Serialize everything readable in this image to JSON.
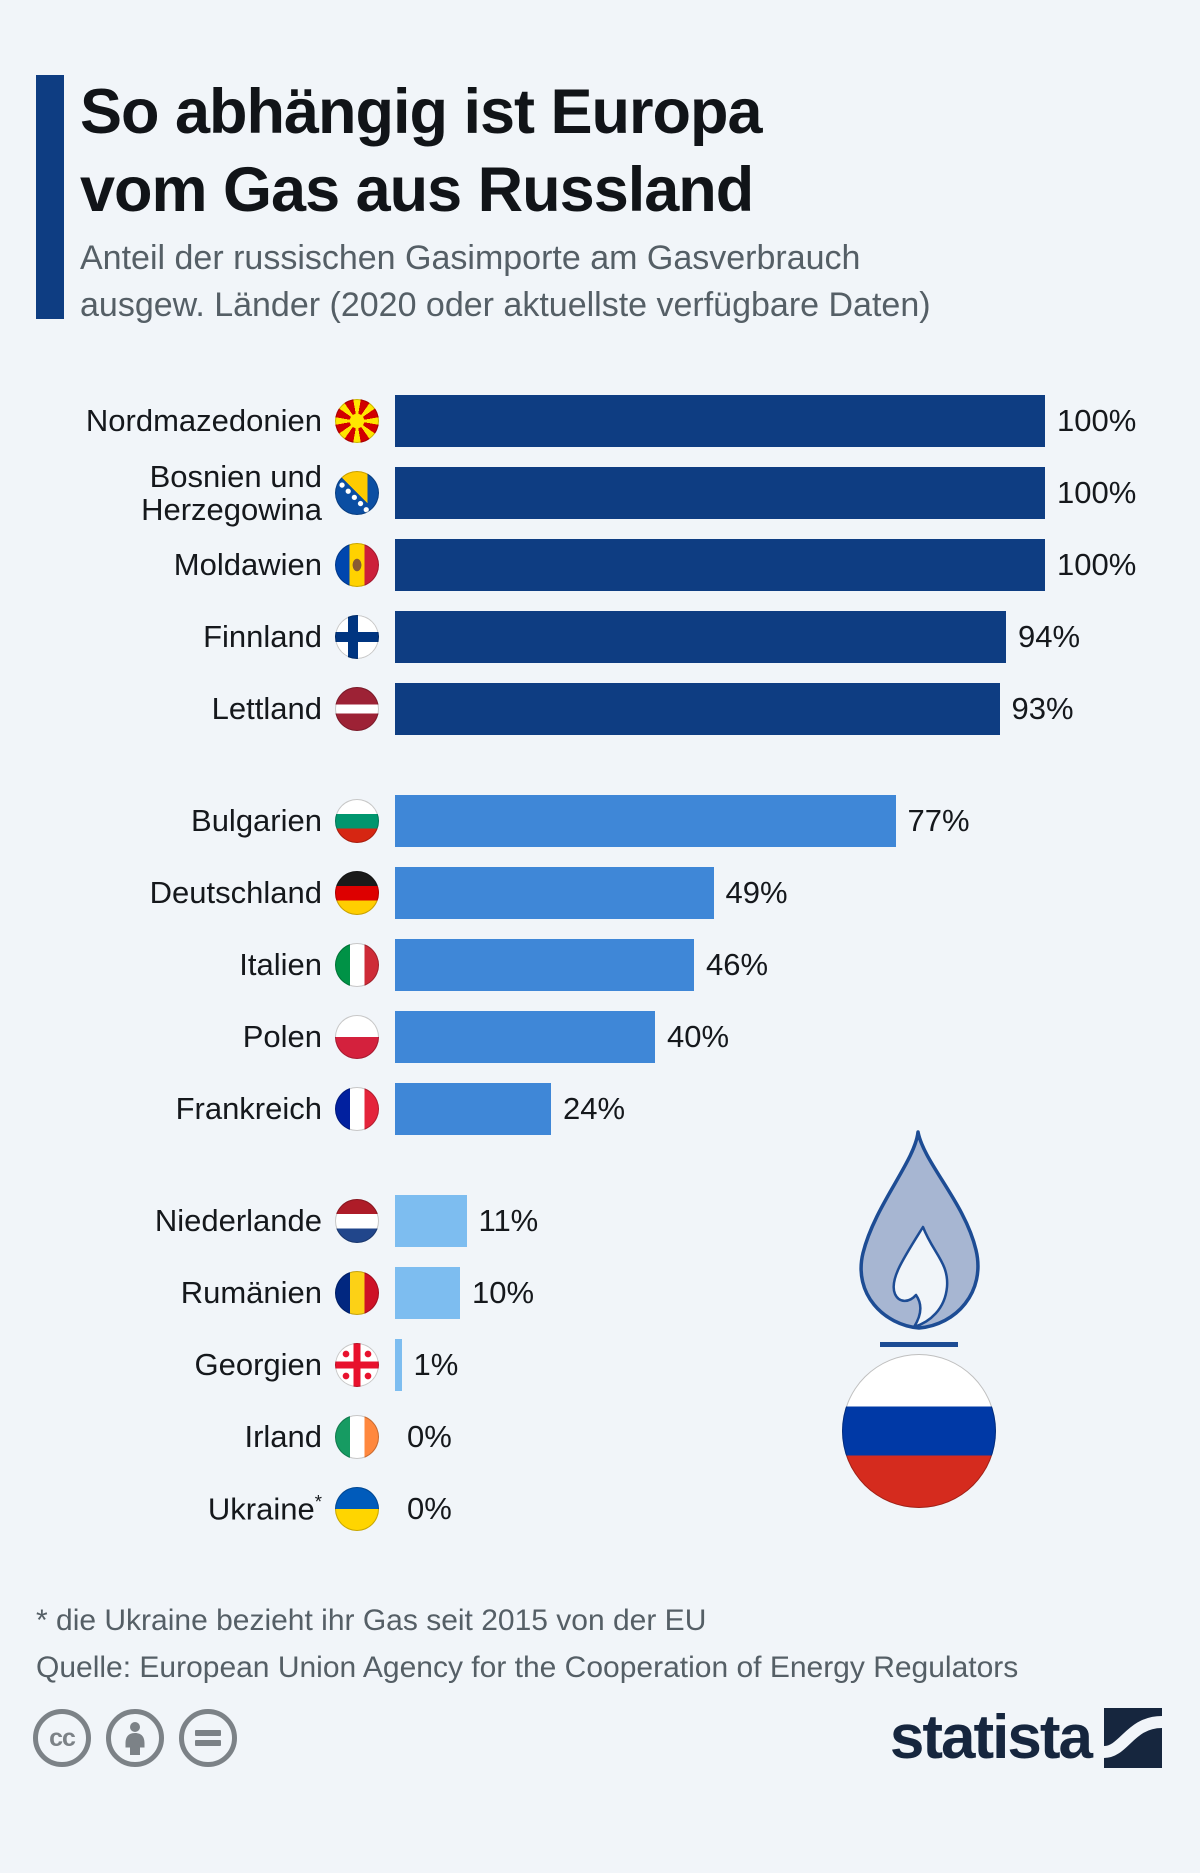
{
  "page": {
    "background": "#f1f5f9"
  },
  "header": {
    "title_line1": "So abhängig ist Europa",
    "title_line2": "vom Gas aus Russland",
    "subtitle_line1": "Anteil der russischen Gasimporte am Gasverbrauch",
    "subtitle_line2": "ausgew. Länder (2020 oder aktuellste verfügbare Daten)",
    "accent_color": "#0e3d82"
  },
  "chart_data": {
    "type": "bar",
    "orientation": "horizontal",
    "value_unit": "%",
    "xlim": [
      0,
      100
    ],
    "grid": false,
    "legend": false,
    "bar_colors": {
      "high": "#0e3d82",
      "mid": "#3f87d7",
      "low": "#7dbdf0"
    },
    "categories": [
      "Nordmazedonien",
      "Bosnien und Herzegowina",
      "Moldawien",
      "Finnland",
      "Lettland",
      "Bulgarien",
      "Deutschland",
      "Italien",
      "Polen",
      "Frankreich",
      "Niederlande",
      "Rumänien",
      "Georgien",
      "Irland",
      "Ukraine"
    ],
    "values": [
      100,
      100,
      100,
      94,
      93,
      77,
      49,
      46,
      40,
      24,
      11,
      10,
      1,
      0,
      0
    ],
    "rows": [
      {
        "label": "Nordmazedonien",
        "flag": "north-macedonia",
        "value": 100,
        "display": "100%",
        "tier": "high",
        "group": 1
      },
      {
        "label": "Bosnien und Herzegowina",
        "flag": "bosnia-herzegovina",
        "value": 100,
        "display": "100%",
        "tier": "high",
        "group": 1
      },
      {
        "label": "Moldawien",
        "flag": "moldova",
        "value": 100,
        "display": "100%",
        "tier": "high",
        "group": 1
      },
      {
        "label": "Finnland",
        "flag": "finland",
        "value": 94,
        "display": "94%",
        "tier": "high",
        "group": 1
      },
      {
        "label": "Lettland",
        "flag": "latvia",
        "value": 93,
        "display": "93%",
        "tier": "high",
        "group": 1
      },
      {
        "label": "Bulgarien",
        "flag": "bulgaria",
        "value": 77,
        "display": "77%",
        "tier": "mid",
        "group": 2
      },
      {
        "label": "Deutschland",
        "flag": "germany",
        "value": 49,
        "display": "49%",
        "tier": "mid",
        "group": 2
      },
      {
        "label": "Italien",
        "flag": "italy",
        "value": 46,
        "display": "46%",
        "tier": "mid",
        "group": 2
      },
      {
        "label": "Polen",
        "flag": "poland",
        "value": 40,
        "display": "40%",
        "tier": "mid",
        "group": 2
      },
      {
        "label": "Frankreich",
        "flag": "france",
        "value": 24,
        "display": "24%",
        "tier": "mid",
        "group": 2
      },
      {
        "label": "Niederlande",
        "flag": "netherlands",
        "value": 11,
        "display": "11%",
        "tier": "low",
        "group": 3
      },
      {
        "label": "Rumänien",
        "flag": "romania",
        "value": 10,
        "display": "10%",
        "tier": "low",
        "group": 3
      },
      {
        "label": "Georgien",
        "flag": "georgia",
        "value": 1,
        "display": "1%",
        "tier": "low",
        "group": 3
      },
      {
        "label": "Irland",
        "flag": "ireland",
        "value": 0,
        "display": "0%",
        "tier": "low",
        "group": 3
      },
      {
        "label": "Ukraine",
        "label_mark": "*",
        "flag": "ukraine",
        "value": 0,
        "display": "0%",
        "tier": "low",
        "group": 3
      }
    ]
  },
  "decor": {
    "flame_icon": "gas-flame",
    "flame_fill": "#a7b6d2",
    "flame_stroke": "#1d4c94",
    "russia_flag": "russia"
  },
  "footer": {
    "note": "* die Ukraine bezieht ihr Gas seit 2015 von der EU",
    "source": "Quelle: European Union Agency for the Cooperation of Energy Regulators"
  },
  "branding": {
    "logo_text": "statista",
    "license_icons": [
      "cc",
      "attribution",
      "no-derivatives"
    ],
    "logo_color": "#16263e"
  }
}
